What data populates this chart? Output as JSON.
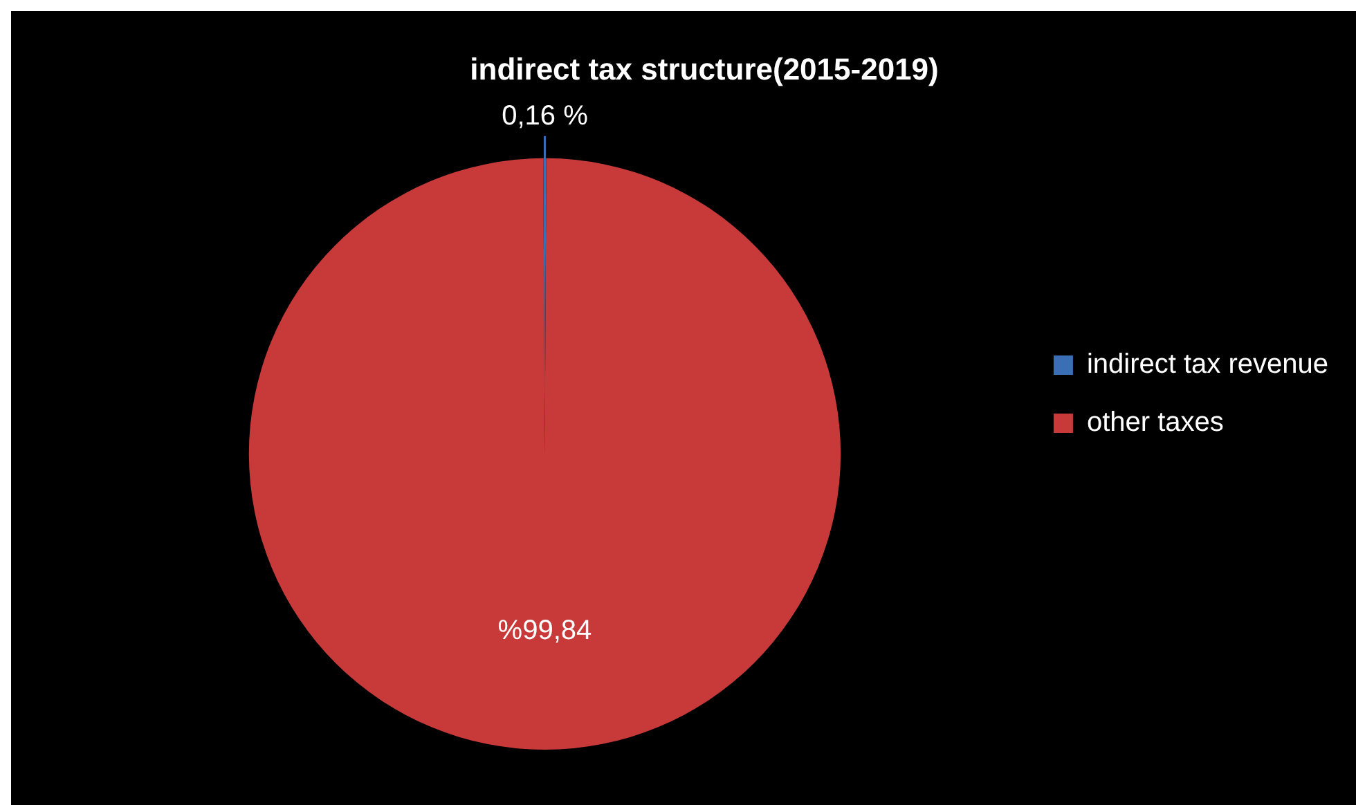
{
  "chart_data": {
    "type": "pie",
    "title": "indirect tax structure(2015-2019)",
    "categories": [
      "indirect tax revenue",
      "other taxes"
    ],
    "values": [
      0.16,
      99.84
    ],
    "colors": [
      "#3a6fb5",
      "#c83a3a"
    ],
    "value_labels": [
      "0,16 %",
      "%99,84"
    ],
    "legend": "right"
  }
}
